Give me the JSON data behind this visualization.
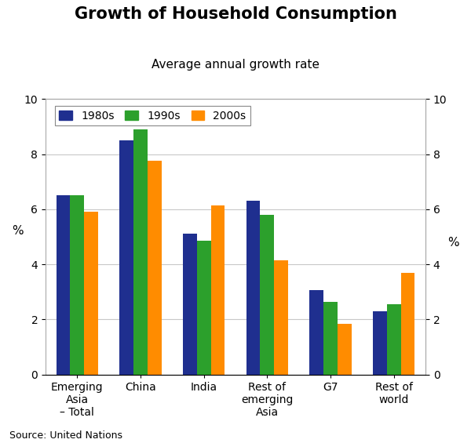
{
  "title": "Growth of Household Consumption",
  "subtitle": "Average annual growth rate",
  "categories": [
    "Emerging\nAsia\n– Total",
    "China",
    "India",
    "Rest of\nemerging\nAsia",
    "G7",
    "Rest of\nworld"
  ],
  "series": {
    "1980s": [
      6.5,
      8.5,
      5.1,
      6.3,
      3.05,
      2.3
    ],
    "1990s": [
      6.5,
      8.9,
      4.85,
      5.8,
      2.65,
      2.55
    ],
    "2000s": [
      5.9,
      7.75,
      6.15,
      4.15,
      1.85,
      3.7
    ]
  },
  "colors": {
    "1980s": "#1f2f8f",
    "1990s": "#2ca02c",
    "2000s": "#ff8c00"
  },
  "ylim": [
    0,
    10
  ],
  "yticks": [
    0,
    2,
    4,
    6,
    8,
    10
  ],
  "ylabel_left": "%",
  "ylabel_right": "%",
  "source": "Source: United Nations",
  "bar_width": 0.22,
  "background_color": "#ffffff",
  "grid_color": "#c8c8c8",
  "title_fontsize": 15,
  "subtitle_fontsize": 11,
  "tick_fontsize": 10,
  "legend_fontsize": 10
}
